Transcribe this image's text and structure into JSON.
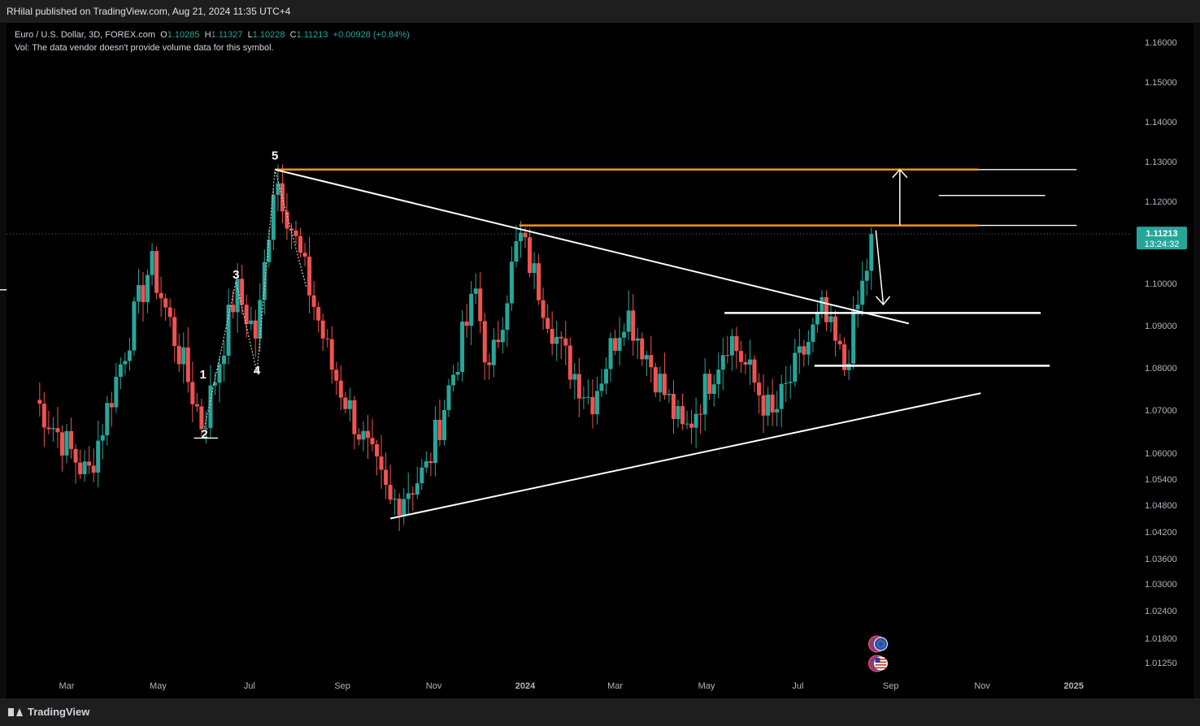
{
  "header": {
    "published": "RHilal published on TradingView.com, Aug 21, 2024 11:35 UTC+4"
  },
  "legend": {
    "symbol": "Euro / U.S. Dollar, 3D, FOREX.com",
    "open_label": "O",
    "open": "1.10285",
    "high_label": "H",
    "high": "1.11327",
    "low_label": "L",
    "low": "1.10228",
    "close_label": "C",
    "close": "1.11213",
    "change": "+0.00928 (+0.84%)",
    "volume_note": "Vol: The data vendor doesn't provide volume data for this symbol."
  },
  "price_badge": {
    "price": "1.11213",
    "countdown": "13:24:32",
    "color": "#26a69a"
  },
  "footer": {
    "brand": "TradingView"
  },
  "colors": {
    "up": "#26a69a",
    "down": "#ef5350",
    "orange": "#f7931a",
    "line": "#ffffff",
    "background": "#000000"
  },
  "icons": [
    "eu-flag-icon",
    "us-flag-icon"
  ],
  "chart_data": {
    "type": "candlestick",
    "timeframe": "3D",
    "y_ticks": [
      "1.16000",
      "1.15000",
      "1.14000",
      "1.13000",
      "1.12000",
      "1.11213",
      "1.10000",
      "1.09000",
      "1.08000",
      "1.07000",
      "1.06000",
      "1.05400",
      "1.04800",
      "1.04200",
      "1.03600",
      "1.03000",
      "1.02400",
      "1.01800",
      "1.01250"
    ],
    "y_tick_values": [
      1.16,
      1.15,
      1.14,
      1.13,
      1.12,
      1.11213,
      1.1,
      1.09,
      1.08,
      1.07,
      1.06,
      1.054,
      1.048,
      1.042,
      1.036,
      1.03,
      1.024,
      1.018,
      1.0125
    ],
    "x_ticks": [
      {
        "label": "Mar",
        "date": "2023-03-01"
      },
      {
        "label": "May",
        "date": "2023-05-01"
      },
      {
        "label": "Jul",
        "date": "2023-07-01"
      },
      {
        "label": "Sep",
        "date": "2023-09-01"
      },
      {
        "label": "Nov",
        "date": "2023-11-01"
      },
      {
        "label": "2024",
        "date": "2024-01-01"
      },
      {
        "label": "Mar",
        "date": "2024-03-01"
      },
      {
        "label": "May",
        "date": "2024-05-01"
      },
      {
        "label": "Jul",
        "date": "2024-07-01"
      },
      {
        "label": "Sep",
        "date": "2024-09-01"
      },
      {
        "label": "Nov",
        "date": "2024-11-01"
      },
      {
        "label": "2025",
        "date": "2025-01-01"
      }
    ],
    "wave_labels": [
      {
        "text": "1",
        "date": "2023-05-31",
        "price": 1.0775
      },
      {
        "text": "2",
        "date": "2023-06-01",
        "price": 1.0635
      },
      {
        "text": "3",
        "date": "2023-06-22",
        "price": 1.1012
      },
      {
        "text": "4",
        "date": "2023-07-06",
        "price": 1.0785
      },
      {
        "text": "5",
        "date": "2023-07-18",
        "price": 1.1305
      }
    ],
    "current_price": 1.11213,
    "anchors": [
      {
        "date": "2023-02-08",
        "close": 1.0725
      },
      {
        "date": "2023-03-15",
        "close": 1.0545
      },
      {
        "date": "2023-04-26",
        "close": 1.105
      },
      {
        "date": "2023-05-31",
        "close": 1.066
      },
      {
        "date": "2023-06-22",
        "close": 1.0985
      },
      {
        "date": "2023-07-06",
        "close": 1.087
      },
      {
        "date": "2023-07-18",
        "close": 1.1275
      },
      {
        "date": "2023-08-25",
        "close": 1.08
      },
      {
        "date": "2023-10-03",
        "close": 1.048
      },
      {
        "date": "2023-10-27",
        "close": 1.056
      },
      {
        "date": "2023-11-29",
        "close": 1.098
      },
      {
        "date": "2023-12-08",
        "close": 1.078
      },
      {
        "date": "2023-12-28",
        "close": 1.112
      },
      {
        "date": "2024-01-25",
        "close": 1.084
      },
      {
        "date": "2024-02-14",
        "close": 1.072
      },
      {
        "date": "2024-03-08",
        "close": 1.094
      },
      {
        "date": "2024-04-16",
        "close": 1.064
      },
      {
        "date": "2024-05-16",
        "close": 1.088
      },
      {
        "date": "2024-06-14",
        "close": 1.068
      },
      {
        "date": "2024-07-17",
        "close": 1.093
      },
      {
        "date": "2024-08-01",
        "close": 1.08
      },
      {
        "date": "2024-08-21",
        "close": 1.11213
      }
    ],
    "drawings": {
      "orange_levels": [
        {
          "from": "2023-07-18",
          "to": "2024-10-29",
          "price": 1.128
        },
        {
          "from": "2023-12-28",
          "to": "2024-10-29",
          "price": 1.1142
        }
      ],
      "white_levels": [
        {
          "from": "2024-05-07",
          "to": "2025-01-03",
          "price": 1.128
        },
        {
          "from": "2024-05-07",
          "to": "2025-01-03",
          "price": 1.1142
        },
        {
          "from": "2024-10-03",
          "to": "2024-12-13",
          "price": 1.1215
        },
        {
          "from": "2024-05-13",
          "to": "2024-12-10",
          "price": 1.093
        },
        {
          "from": "2024-07-12",
          "to": "2024-12-16",
          "price": 1.0805
        },
        {
          "from": "2023-01-01",
          "to": "2023-01-20",
          "price": 1.0985
        },
        {
          "from": "2023-05-25",
          "to": "2023-06-10",
          "price": 1.0635
        }
      ],
      "trendlines": [
        {
          "from_date": "2023-07-18",
          "from_price": 1.128,
          "to_date": "2024-09-13",
          "to_price": 1.0905
        },
        {
          "from_date": "2023-10-03",
          "from_price": 1.045,
          "to_date": "2024-10-31",
          "to_price": 1.074
        }
      ],
      "wave_path": [
        {
          "date": "2023-06-01",
          "price": 1.066
        },
        {
          "date": "2023-06-22",
          "price": 1.1005
        },
        {
          "date": "2023-07-06",
          "price": 1.079
        },
        {
          "date": "2023-07-18",
          "price": 1.128
        },
        {
          "date": "2023-08-08",
          "price": 1.099
        }
      ],
      "arrow_up": {
        "date": "2024-09-07",
        "from": 1.1142,
        "to": 1.128
      },
      "arrow_down": {
        "from_date": "2024-08-22",
        "from_price": 1.113,
        "to_date": "2024-08-27",
        "to_price": 1.095
      }
    }
  }
}
